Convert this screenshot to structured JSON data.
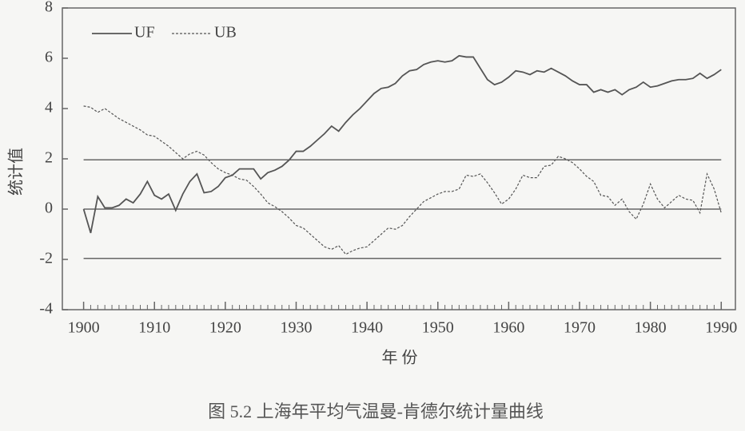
{
  "chart_data": {
    "type": "line",
    "title": "图 5.2  上海年平均气温曼-肯德尔统计量曲线",
    "x_label": "年 份",
    "y_label": "统计值",
    "xlim": [
      1897,
      1992
    ],
    "xticks": [
      1900,
      1910,
      1920,
      1930,
      1940,
      1950,
      1960,
      1970,
      1980,
      1990
    ],
    "ylim": [
      -4,
      8
    ],
    "yticks": [
      -4,
      -2,
      0,
      2,
      4,
      6,
      8
    ],
    "reference_lines": [
      1.96,
      0,
      -1.96
    ],
    "x": [
      1900,
      1901,
      1902,
      1903,
      1904,
      1905,
      1906,
      1907,
      1908,
      1909,
      1910,
      1911,
      1912,
      1913,
      1914,
      1915,
      1916,
      1917,
      1918,
      1919,
      1920,
      1921,
      1922,
      1923,
      1924,
      1925,
      1926,
      1927,
      1928,
      1929,
      1930,
      1931,
      1932,
      1933,
      1934,
      1935,
      1936,
      1937,
      1938,
      1939,
      1940,
      1941,
      1942,
      1943,
      1944,
      1945,
      1946,
      1947,
      1948,
      1949,
      1950,
      1951,
      1952,
      1953,
      1954,
      1955,
      1956,
      1957,
      1958,
      1959,
      1960,
      1961,
      1962,
      1963,
      1964,
      1965,
      1966,
      1967,
      1968,
      1969,
      1970,
      1971,
      1972,
      1973,
      1974,
      1975,
      1976,
      1977,
      1978,
      1979,
      1980,
      1981,
      1982,
      1983,
      1984,
      1985,
      1986,
      1987,
      1988,
      1989,
      1990
    ],
    "series": [
      {
        "name": "UF",
        "color": "#555555",
        "dash": false,
        "values": [
          0,
          -0.95,
          0.5,
          0.05,
          0.05,
          0.15,
          0.4,
          0.25,
          0.6,
          1.1,
          0.55,
          0.4,
          0.6,
          -0.05,
          0.6,
          1.1,
          1.4,
          0.65,
          0.7,
          0.9,
          1.25,
          1.35,
          1.6,
          1.6,
          1.6,
          1.2,
          1.45,
          1.55,
          1.7,
          1.95,
          2.3,
          2.3,
          2.5,
          2.75,
          3.0,
          3.3,
          3.1,
          3.45,
          3.75,
          4.0,
          4.3,
          4.6,
          4.8,
          4.85,
          5.0,
          5.3,
          5.5,
          5.55,
          5.75,
          5.85,
          5.9,
          5.85,
          5.9,
          6.1,
          6.05,
          6.05,
          5.6,
          5.15,
          4.95,
          5.05,
          5.25,
          5.5,
          5.45,
          5.35,
          5.5,
          5.45,
          5.6,
          5.45,
          5.3,
          5.1,
          4.95,
          4.95,
          4.65,
          4.75,
          4.65,
          4.75,
          4.55,
          4.75,
          4.85,
          5.05,
          4.85,
          4.9,
          5.0,
          5.1,
          5.15,
          5.15,
          5.2,
          5.4,
          5.2,
          5.35,
          5.55
        ]
      },
      {
        "name": "UB",
        "color": "#555555",
        "dash": true,
        "values": [
          4.1,
          4.05,
          3.85,
          4.0,
          3.8,
          3.6,
          3.45,
          3.3,
          3.15,
          2.95,
          2.9,
          2.7,
          2.5,
          2.25,
          2.0,
          2.2,
          2.3,
          2.15,
          1.85,
          1.6,
          1.45,
          1.35,
          1.2,
          1.15,
          0.9,
          0.6,
          0.25,
          0.1,
          -0.1,
          -0.35,
          -0.65,
          -0.75,
          -1.0,
          -1.25,
          -1.5,
          -1.6,
          -1.45,
          -1.8,
          -1.65,
          -1.55,
          -1.5,
          -1.25,
          -1.0,
          -0.75,
          -0.8,
          -0.65,
          -0.3,
          0.0,
          0.3,
          0.45,
          0.6,
          0.7,
          0.7,
          0.8,
          1.35,
          1.3,
          1.4,
          1.05,
          0.65,
          0.2,
          0.4,
          0.8,
          1.35,
          1.25,
          1.25,
          1.7,
          1.75,
          2.1,
          2.0,
          1.85,
          1.6,
          1.3,
          1.1,
          0.55,
          0.5,
          0.15,
          0.4,
          -0.1,
          -0.4,
          0.2,
          1.0,
          0.4,
          0.05,
          0.3,
          0.55,
          0.4,
          0.35,
          -0.15,
          1.4,
          0.8,
          -0.15
        ]
      }
    ]
  }
}
